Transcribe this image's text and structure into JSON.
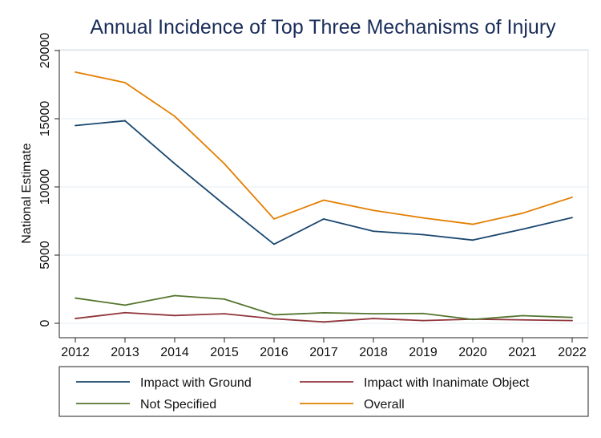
{
  "chart_data": {
    "type": "line",
    "title": "Annual Incidence of Top Three Mechanisms of Injury",
    "xlabel": "",
    "ylabel": "National Estimate",
    "categories": [
      2012,
      2013,
      2014,
      2015,
      2016,
      2017,
      2018,
      2019,
      2020,
      2021,
      2022
    ],
    "x_tick_labels": [
      "2012",
      "2013",
      "2014",
      "2015",
      "2016",
      "2017",
      "2018",
      "2019",
      "2020",
      "2021",
      "2022"
    ],
    "ylim": [
      0,
      20000
    ],
    "y_ticks": [
      0,
      5000,
      10000,
      15000,
      20000
    ],
    "y_tick_labels": [
      "0",
      "5000",
      "10000",
      "15000",
      "20000"
    ],
    "grid": true,
    "legend_position": "bottom",
    "series": [
      {
        "name": "Impact with Ground",
        "color": "#1a476f",
        "values": [
          14500,
          14850,
          11700,
          8700,
          5800,
          7650,
          6750,
          6500,
          6100,
          6900,
          7750
        ]
      },
      {
        "name": "Impact with Inanimate Object",
        "color": "#90353b",
        "values": [
          350,
          780,
          570,
          700,
          330,
          100,
          350,
          200,
          300,
          250,
          200
        ]
      },
      {
        "name": "Not Specified",
        "color": "#55752f",
        "values": [
          1850,
          1330,
          2030,
          1770,
          620,
          770,
          700,
          720,
          280,
          560,
          430
        ]
      },
      {
        "name": "Overall",
        "color": "#e37e00",
        "values": [
          18420,
          17650,
          15180,
          11700,
          7650,
          9030,
          8280,
          7730,
          7260,
          8070,
          9240
        ]
      }
    ]
  }
}
